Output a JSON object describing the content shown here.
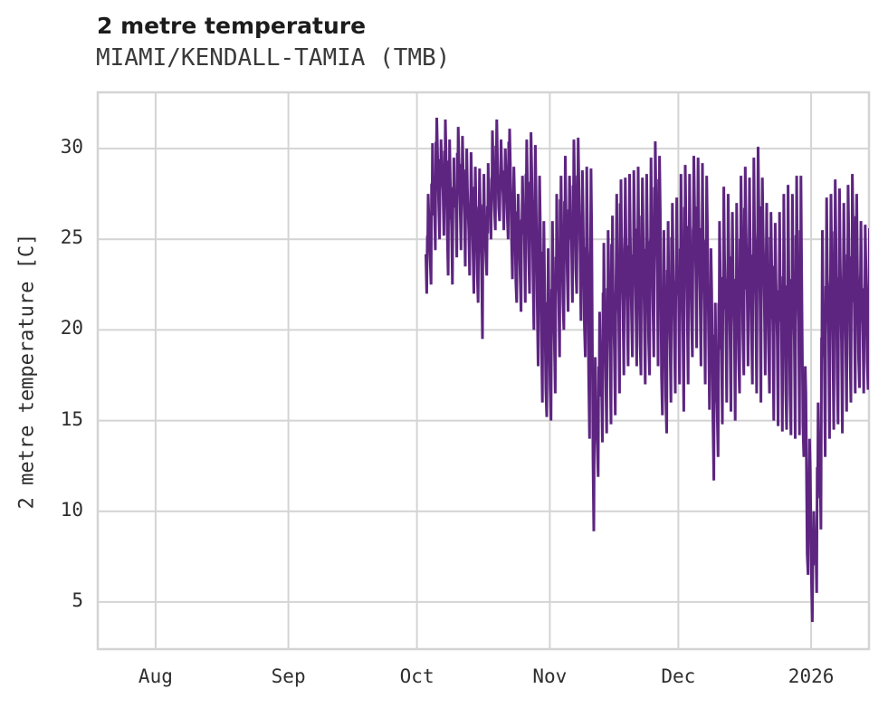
{
  "header": {
    "title": "2 metre temperature",
    "subtitle": "MIAMI/KENDALL-TAMIA (TMB)"
  },
  "chart_data": {
    "type": "line",
    "title": "2 metre temperature",
    "subtitle": "MIAMI/KENDALL-TAMIA (TMB)",
    "xlabel": "",
    "ylabel": "2 metre temperature [C]",
    "unit": "C",
    "grid": true,
    "legend": "none",
    "line_color": "#5d2580",
    "grid_color": "#d4d4d4",
    "text_color": "#2e2e2e",
    "background_color": "#ffffff",
    "ylim": [
      2.4,
      33.1
    ],
    "y_ticks": [
      5,
      10,
      15,
      20,
      25,
      30
    ],
    "x_ticks": [
      {
        "label": "Aug",
        "offset_days": 0
      },
      {
        "label": "Sep",
        "offset_days": 31
      },
      {
        "label": "Oct",
        "offset_days": 61
      },
      {
        "label": "Nov",
        "offset_days": 92
      },
      {
        "label": "Dec",
        "offset_days": 122
      },
      {
        "label": "2026",
        "offset_days": 153
      }
    ],
    "x_domain_offset_days": [
      -13.5,
      166.5
    ],
    "x_domain_note": "offsets are days relative to Aug 1, 2025; axis spans ~Jul 18 2025 to ~Jan 14 2026",
    "series": [
      {
        "name": "2 metre temperature",
        "start_date": "2025-10-03",
        "start_offset_days": 63,
        "cadence": "daily min/max read from hourly trace",
        "daily_max": [
          27.5,
          30.3,
          31.7,
          30.5,
          31.6,
          30.5,
          29.5,
          31.2,
          30.7,
          30.0,
          29.8,
          29.0,
          28.9,
          28.6,
          29.2,
          31.0,
          31.6,
          30.5,
          30.0,
          31.1,
          29.0,
          27.5,
          28.5,
          30.5,
          30.9,
          30.2,
          28.5,
          26.0,
          24.5,
          26.0,
          27.5,
          28.5,
          29.6,
          28.5,
          30.5,
          30.6,
          28.8,
          29.0,
          28.9,
          18.5,
          21.0,
          24.8,
          25.5,
          26.3,
          27.5,
          28.3,
          28.4,
          28.6,
          28.8,
          29.0,
          28.4,
          28.6,
          29.5,
          30.4,
          29.6,
          25.5,
          26.0,
          27.0,
          27.3,
          28.6,
          29.1,
          28.6,
          29.6,
          29.5,
          29.2,
          28.5,
          24.5,
          21.5,
          26.0,
          27.9,
          27.5,
          26.5,
          27.0,
          28.5,
          29.0,
          28.4,
          29.5,
          30.1,
          28.4,
          27.0,
          26.5,
          25.9,
          26.5,
          27.5,
          28.0,
          27.5,
          28.5,
          28.5,
          18.0,
          14.0,
          10.0,
          16.0,
          25.5,
          27.3,
          27.5,
          28.3,
          27.8,
          27.0,
          28.0,
          28.6,
          27.5,
          26.0,
          25.8,
          25.6
        ],
        "daily_min": [
          22.0,
          22.5,
          24.4,
          25.0,
          25.2,
          23.0,
          22.5,
          24.0,
          24.4,
          23.5,
          23.0,
          22.0,
          21.5,
          19.5,
          23.0,
          25.0,
          25.5,
          26.0,
          25.5,
          25.0,
          22.8,
          21.5,
          21.0,
          21.5,
          22.0,
          20.0,
          18.0,
          16.0,
          15.2,
          15.0,
          16.5,
          18.5,
          20.0,
          21.0,
          21.5,
          22.0,
          20.5,
          18.5,
          14.0,
          8.9,
          11.9,
          13.8,
          14.3,
          14.8,
          15.3,
          16.5,
          17.5,
          18.0,
          18.5,
          18.0,
          17.5,
          17.0,
          17.5,
          18.5,
          18.0,
          15.3,
          14.3,
          16.0,
          16.5,
          17.0,
          15.5,
          17.0,
          18.5,
          19.0,
          18.0,
          17.0,
          15.6,
          11.7,
          13.0,
          14.8,
          16.0,
          15.5,
          15.0,
          16.5,
          17.5,
          18.0,
          17.0,
          16.5,
          16.0,
          17.5,
          16.5,
          15.0,
          14.7,
          14.4,
          14.5,
          14.2,
          14.0,
          14.2,
          13.0,
          6.5,
          3.9,
          5.5,
          9.0,
          13.0,
          14.0,
          14.5,
          14.8,
          14.3,
          15.5,
          16.0,
          16.5,
          16.8,
          16.5,
          16.7
        ]
      }
    ]
  }
}
